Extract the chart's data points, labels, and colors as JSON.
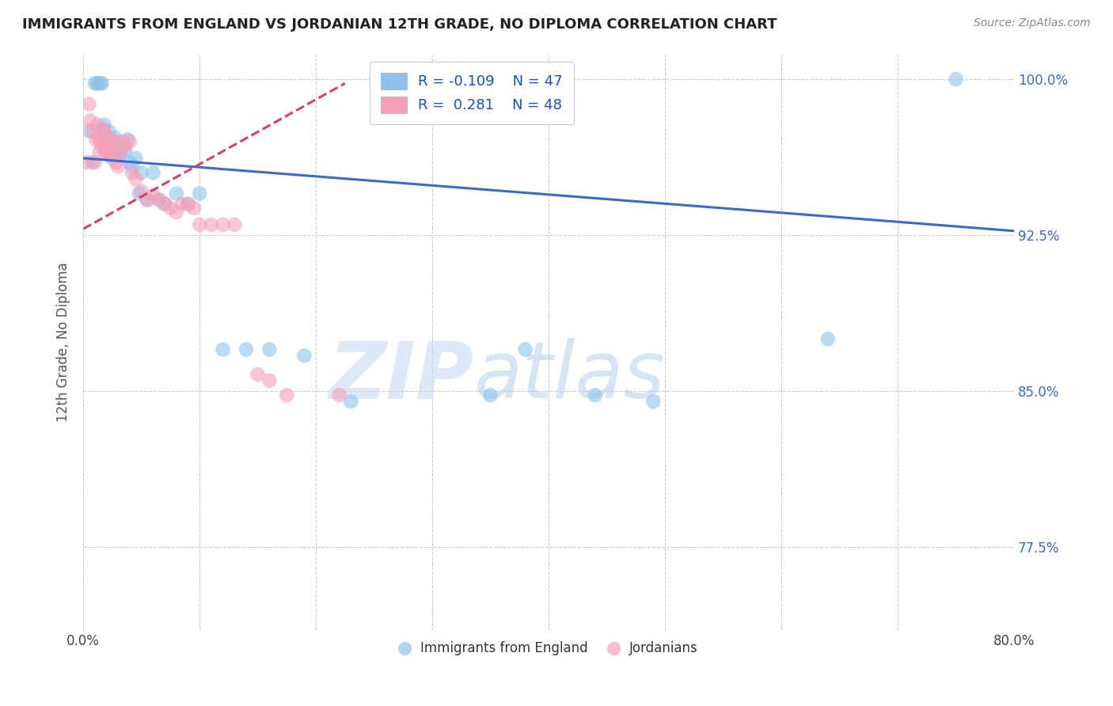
{
  "title": "IMMIGRANTS FROM ENGLAND VS JORDANIAN 12TH GRADE, NO DIPLOMA CORRELATION CHART",
  "source": "Source: ZipAtlas.com",
  "ylabel": "12th Grade, No Diploma",
  "xlim": [
    0.0,
    0.8
  ],
  "ylim": [
    0.735,
    1.012
  ],
  "xticks": [
    0.0,
    0.1,
    0.2,
    0.3,
    0.4,
    0.5,
    0.6,
    0.7,
    0.8
  ],
  "xticklabels": [
    "0.0%",
    "",
    "",
    "",
    "",
    "",
    "",
    "",
    "80.0%"
  ],
  "ytick_positions": [
    1.0,
    0.925,
    0.85,
    0.775
  ],
  "yticklabels": [
    "100.0%",
    "92.5%",
    "85.0%",
    "77.5%"
  ],
  "legend_blue_r": "-0.109",
  "legend_blue_n": "47",
  "legend_pink_r": "0.281",
  "legend_pink_n": "48",
  "blue_color": "#8EC4EC",
  "pink_color": "#F4A0B8",
  "blue_line_color": "#3A6BC9",
  "pink_line_color": "#D44070",
  "watermark_zip": "ZIP",
  "watermark_atlas": "atlas",
  "blue_scatter_x": [
    0.005,
    0.008,
    0.01,
    0.012,
    0.013,
    0.015,
    0.016,
    0.017,
    0.018,
    0.019,
    0.02,
    0.021,
    0.022,
    0.023,
    0.024,
    0.025,
    0.026,
    0.027,
    0.028,
    0.03,
    0.032,
    0.034,
    0.036,
    0.038,
    0.04,
    0.042,
    0.045,
    0.048,
    0.05,
    0.055,
    0.06,
    0.065,
    0.07,
    0.08,
    0.09,
    0.1,
    0.12,
    0.14,
    0.16,
    0.19,
    0.23,
    0.35,
    0.38,
    0.44,
    0.49,
    0.64,
    0.75
  ],
  "blue_scatter_y": [
    0.975,
    0.96,
    0.998,
    0.998,
    0.998,
    0.998,
    0.998,
    0.976,
    0.978,
    0.973,
    0.97,
    0.965,
    0.975,
    0.966,
    0.968,
    0.962,
    0.968,
    0.972,
    0.97,
    0.965,
    0.963,
    0.968,
    0.966,
    0.971,
    0.96,
    0.958,
    0.962,
    0.945,
    0.955,
    0.942,
    0.955,
    0.942,
    0.94,
    0.945,
    0.94,
    0.945,
    0.87,
    0.87,
    0.87,
    0.867,
    0.845,
    0.848,
    0.87,
    0.848,
    0.845,
    0.875,
    1.0
  ],
  "pink_scatter_x": [
    0.003,
    0.005,
    0.006,
    0.008,
    0.01,
    0.011,
    0.012,
    0.013,
    0.014,
    0.015,
    0.016,
    0.017,
    0.018,
    0.019,
    0.02,
    0.021,
    0.022,
    0.023,
    0.024,
    0.025,
    0.026,
    0.027,
    0.028,
    0.03,
    0.032,
    0.034,
    0.036,
    0.04,
    0.042,
    0.045,
    0.05,
    0.055,
    0.06,
    0.065,
    0.07,
    0.075,
    0.08,
    0.085,
    0.09,
    0.095,
    0.1,
    0.11,
    0.12,
    0.13,
    0.15,
    0.16,
    0.175,
    0.22
  ],
  "pink_scatter_y": [
    0.96,
    0.988,
    0.98,
    0.975,
    0.96,
    0.971,
    0.978,
    0.972,
    0.965,
    0.97,
    0.968,
    0.975,
    0.975,
    0.965,
    0.965,
    0.967,
    0.972,
    0.97,
    0.965,
    0.963,
    0.968,
    0.97,
    0.96,
    0.958,
    0.965,
    0.97,
    0.968,
    0.97,
    0.955,
    0.952,
    0.946,
    0.942,
    0.944,
    0.942,
    0.94,
    0.938,
    0.936,
    0.94,
    0.94,
    0.938,
    0.93,
    0.93,
    0.93,
    0.93,
    0.858,
    0.855,
    0.848,
    0.848
  ],
  "blue_trend_x": [
    0.0,
    0.8
  ],
  "blue_trend_y": [
    0.962,
    0.927
  ],
  "pink_trend_x": [
    0.0,
    0.225
  ],
  "pink_trend_y": [
    0.928,
    0.998
  ]
}
